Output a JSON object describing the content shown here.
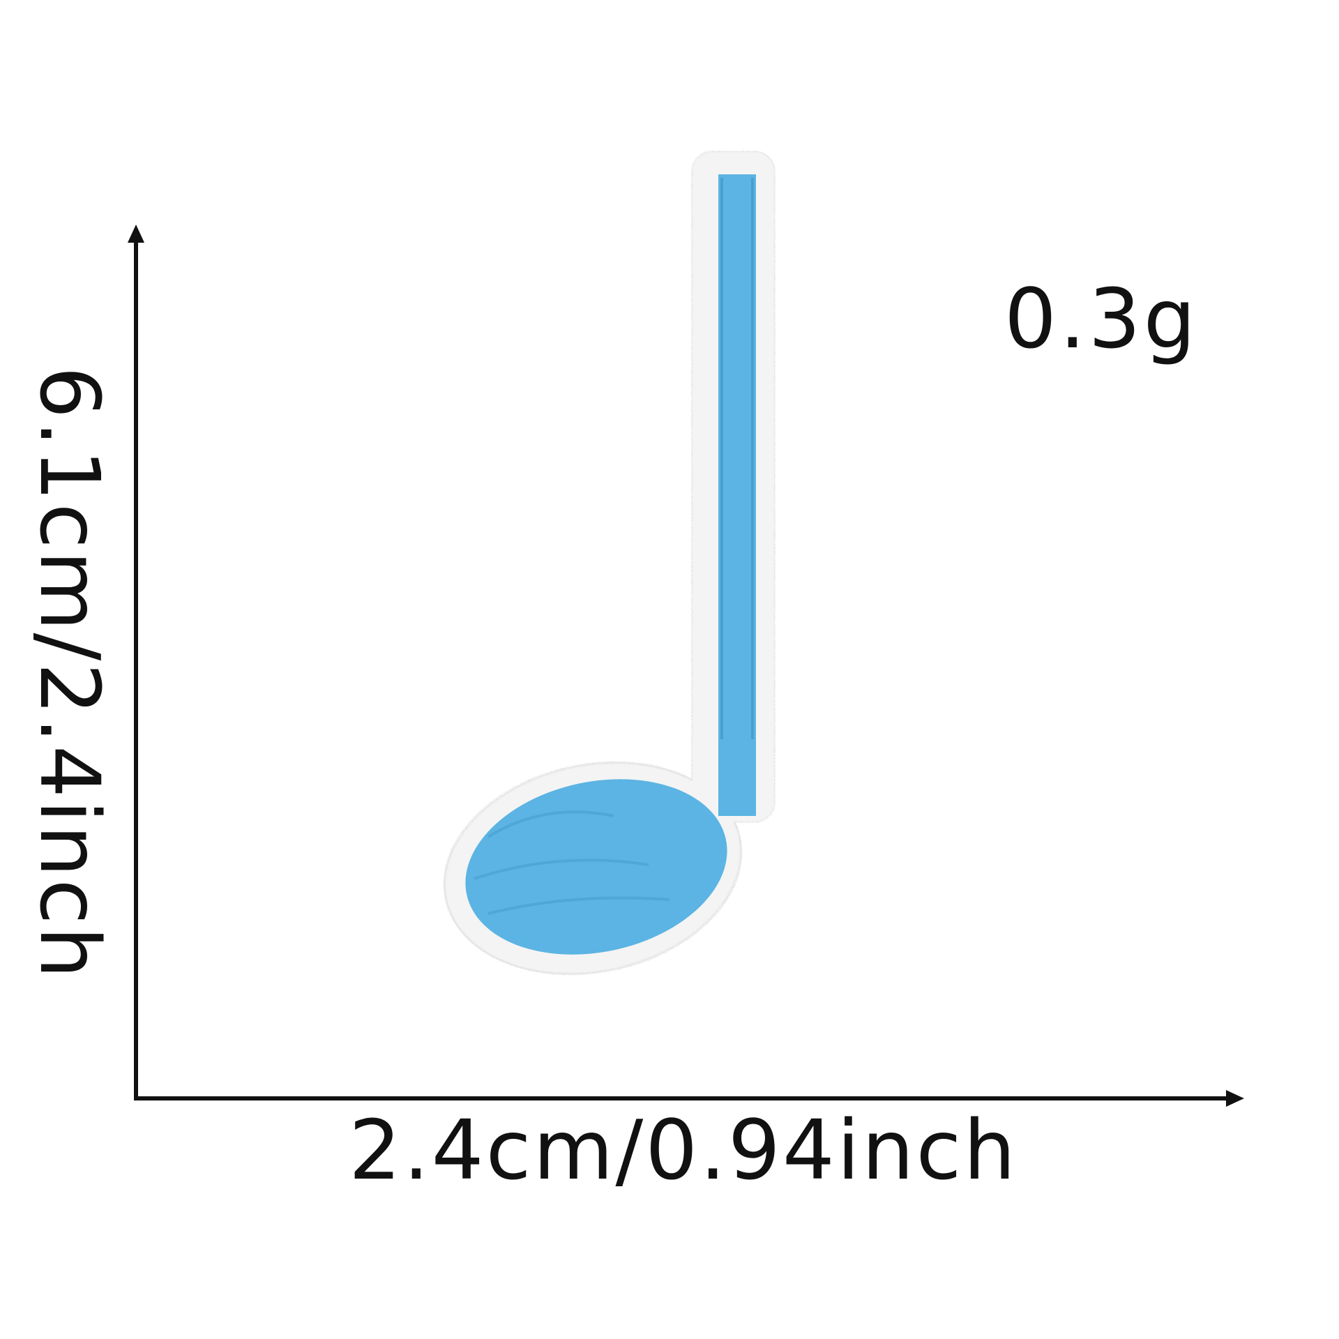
{
  "product": {
    "weight": "0.3g",
    "width_label": "2.4cm/0.94inch",
    "height_label": "6.1cm/2.4inch",
    "fill_color": "#5bb4e3",
    "border_color": "#f7f7f7",
    "icon": "music-note-icon"
  }
}
